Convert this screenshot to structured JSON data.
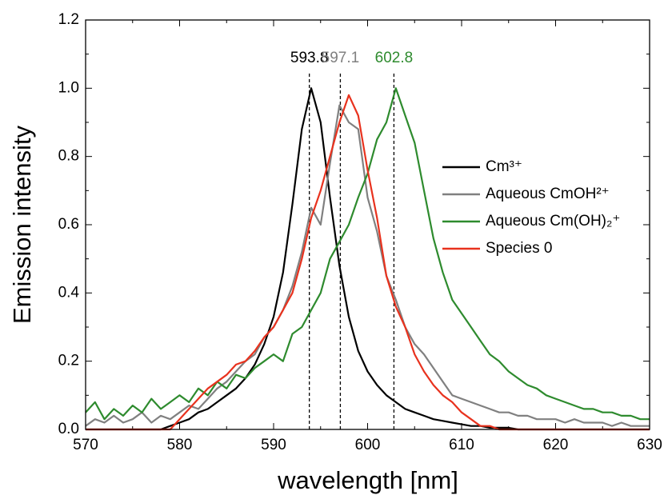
{
  "chart_data": {
    "type": "line",
    "xlabel": "wavelength [nm]",
    "ylabel": "Emission intensity",
    "x": [
      570,
      571,
      572,
      573,
      574,
      575,
      576,
      577,
      578,
      579,
      580,
      581,
      582,
      583,
      584,
      585,
      586,
      587,
      588,
      589,
      590,
      591,
      592,
      593,
      594,
      595,
      596,
      597,
      598,
      599,
      600,
      601,
      602,
      603,
      604,
      605,
      606,
      607,
      608,
      609,
      610,
      611,
      612,
      613,
      614,
      615,
      616,
      617,
      618,
      619,
      620,
      621,
      622,
      623,
      624,
      625,
      626,
      627,
      628,
      629,
      630
    ],
    "series": [
      {
        "name": "Cm³⁺",
        "color": "#000000",
        "values": [
          0,
          0,
          0,
          0,
          0,
          0,
          0,
          0,
          0,
          0.01,
          0.02,
          0.03,
          0.05,
          0.06,
          0.08,
          0.1,
          0.12,
          0.15,
          0.19,
          0.25,
          0.33,
          0.46,
          0.66,
          0.88,
          1.0,
          0.9,
          0.68,
          0.48,
          0.33,
          0.23,
          0.17,
          0.13,
          0.1,
          0.08,
          0.06,
          0.05,
          0.04,
          0.03,
          0.025,
          0.02,
          0.015,
          0.01,
          0.01,
          0.005,
          0.005,
          0.005,
          0,
          0,
          0,
          0,
          0,
          0,
          0,
          0,
          0,
          0,
          0,
          0,
          0,
          0,
          0
        ]
      },
      {
        "name": "Aqueous CmOH²⁺",
        "color": "#808080",
        "values": [
          0.01,
          0.03,
          0.02,
          0.04,
          0.02,
          0.03,
          0.05,
          0.02,
          0.04,
          0.03,
          0.05,
          0.07,
          0.06,
          0.09,
          0.12,
          0.14,
          0.17,
          0.2,
          0.22,
          0.27,
          0.3,
          0.35,
          0.42,
          0.52,
          0.65,
          0.6,
          0.78,
          0.95,
          0.9,
          0.88,
          0.68,
          0.58,
          0.45,
          0.38,
          0.3,
          0.25,
          0.22,
          0.18,
          0.14,
          0.1,
          0.09,
          0.08,
          0.07,
          0.06,
          0.05,
          0.05,
          0.04,
          0.04,
          0.03,
          0.03,
          0.03,
          0.02,
          0.03,
          0.02,
          0.02,
          0.02,
          0.01,
          0.02,
          0.01,
          0.01,
          0.01
        ]
      },
      {
        "name": "Aqueous Cm(OH)₂⁺",
        "color": "#2e8b2e",
        "values": [
          0.05,
          0.08,
          0.03,
          0.06,
          0.04,
          0.07,
          0.05,
          0.09,
          0.06,
          0.08,
          0.1,
          0.08,
          0.12,
          0.1,
          0.14,
          0.12,
          0.16,
          0.15,
          0.18,
          0.2,
          0.22,
          0.2,
          0.28,
          0.3,
          0.35,
          0.4,
          0.5,
          0.55,
          0.6,
          0.68,
          0.75,
          0.85,
          0.9,
          1.0,
          0.92,
          0.84,
          0.7,
          0.56,
          0.46,
          0.38,
          0.34,
          0.3,
          0.26,
          0.22,
          0.2,
          0.17,
          0.15,
          0.13,
          0.12,
          0.1,
          0.09,
          0.08,
          0.07,
          0.06,
          0.06,
          0.05,
          0.05,
          0.04,
          0.04,
          0.03,
          0.03
        ]
      },
      {
        "name": "Species 0",
        "color": "#e8321e",
        "values": [
          0,
          0,
          0,
          0,
          0,
          0,
          0,
          0,
          0,
          0,
          0.03,
          0.06,
          0.09,
          0.12,
          0.14,
          0.16,
          0.19,
          0.2,
          0.23,
          0.27,
          0.3,
          0.35,
          0.4,
          0.5,
          0.62,
          0.7,
          0.8,
          0.9,
          0.98,
          0.92,
          0.76,
          0.62,
          0.45,
          0.36,
          0.3,
          0.22,
          0.17,
          0.13,
          0.1,
          0.08,
          0.05,
          0.03,
          0.01,
          0.01,
          0,
          0,
          0,
          0,
          0,
          0,
          0,
          0,
          0,
          0,
          0,
          0,
          0,
          0,
          0,
          0,
          0
        ]
      }
    ],
    "peaks": [
      {
        "x": 593.8,
        "color": "#000000"
      },
      {
        "x": 597.1,
        "color": "#808080"
      },
      {
        "x": 602.8,
        "color": "#2e8b2e"
      }
    ],
    "xlim": [
      570,
      630
    ],
    "xticks": [
      570,
      580,
      590,
      600,
      610,
      620,
      630
    ],
    "ylim": [
      0,
      1.2
    ],
    "yticks": [
      {
        "value": 0,
        "label": "0.0"
      },
      0.2,
      0.4,
      0.6,
      0.8,
      {
        "value": 1,
        "label": "1.0"
      },
      1.2
    ],
    "legend": "right",
    "grid": false
  }
}
